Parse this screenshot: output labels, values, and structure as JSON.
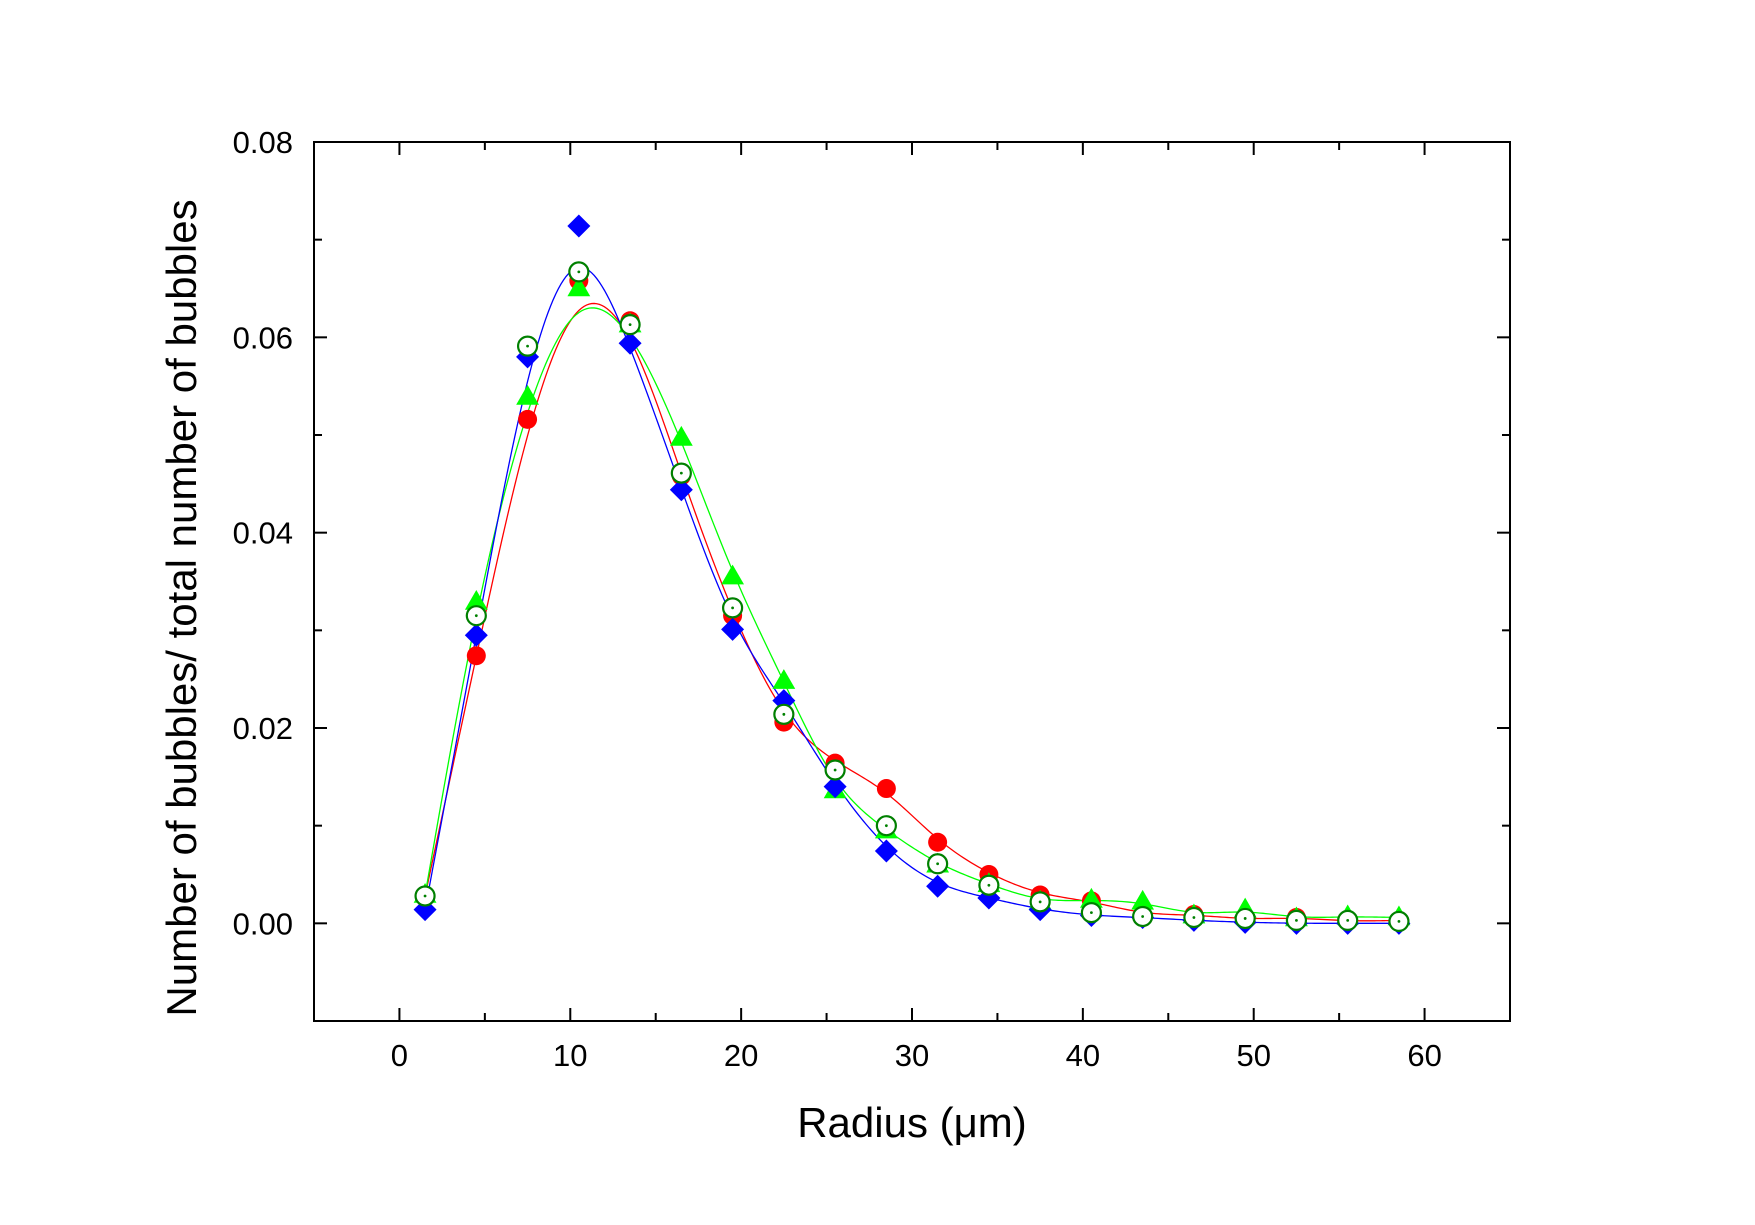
{
  "chart_data": {
    "type": "scatter",
    "title": "",
    "xlabel": "Radius (μm)",
    "ylabel": "Number of bubbles/ total number of bubbles",
    "xlim": [
      -5,
      65
    ],
    "ylim": [
      -0.01,
      0.08
    ],
    "x_ticks": [
      0,
      10,
      20,
      30,
      40,
      50,
      60
    ],
    "x_tick_labels": [
      "0",
      "10",
      "20",
      "30",
      "40",
      "50",
      "60"
    ],
    "y_ticks": [
      0,
      0.02,
      0.04,
      0.06,
      0.08
    ],
    "y_tick_labels": [
      "0.00",
      "0.02",
      "0.04",
      "0.06",
      "0.08"
    ],
    "grid": false,
    "legend": "none",
    "x": [
      1.5,
      4.5,
      7.5,
      10.5,
      13.5,
      16.5,
      19.5,
      22.5,
      25.5,
      28.5,
      31.5,
      34.5,
      37.5,
      40.5,
      43.5,
      46.5,
      49.5,
      52.5,
      55.5,
      58.5
    ],
    "series": [
      {
        "color": "#ff0000",
        "marker": "filled-circle",
        "line": "smooth",
        "values": [
          0.0028,
          0.0274,
          0.0516,
          0.0658,
          0.0617,
          0.0458,
          0.0315,
          0.0206,
          0.0164,
          0.0138,
          0.0083,
          0.005,
          0.0029,
          0.0023,
          0.0009,
          0.0009,
          0.0004,
          0.0006,
          0.0002,
          0.0003
        ]
      },
      {
        "color": "#00ff00",
        "marker": "filled-triangle",
        "line": "smooth",
        "values": [
          0.0029,
          0.0329,
          0.0539,
          0.065,
          0.0613,
          0.0497,
          0.0355,
          0.0248,
          0.0136,
          0.0095,
          0.006,
          0.004,
          0.0022,
          0.0024,
          0.0022,
          0.0008,
          0.0014,
          0.0005,
          0.0007,
          0.0006
        ]
      },
      {
        "color": "#0000ff",
        "marker": "filled-diamond",
        "line": "smooth",
        "values": [
          0.0014,
          0.0295,
          0.058,
          0.0714,
          0.0594,
          0.0444,
          0.0301,
          0.0228,
          0.014,
          0.0074,
          0.0038,
          0.0026,
          0.0014,
          0.0008,
          0.0006,
          0.0003,
          0.0001,
          0.0,
          0.0,
          0.0
        ]
      },
      {
        "color": "#008000",
        "marker": "open-circle",
        "line": "none",
        "values": [
          0.0028,
          0.0315,
          0.0591,
          0.0667,
          0.0613,
          0.0461,
          0.0323,
          0.0214,
          0.0157,
          0.01,
          0.0061,
          0.0039,
          0.0022,
          0.0011,
          0.0007,
          0.0006,
          0.0005,
          0.0003,
          0.0003,
          0.0002
        ]
      }
    ]
  }
}
